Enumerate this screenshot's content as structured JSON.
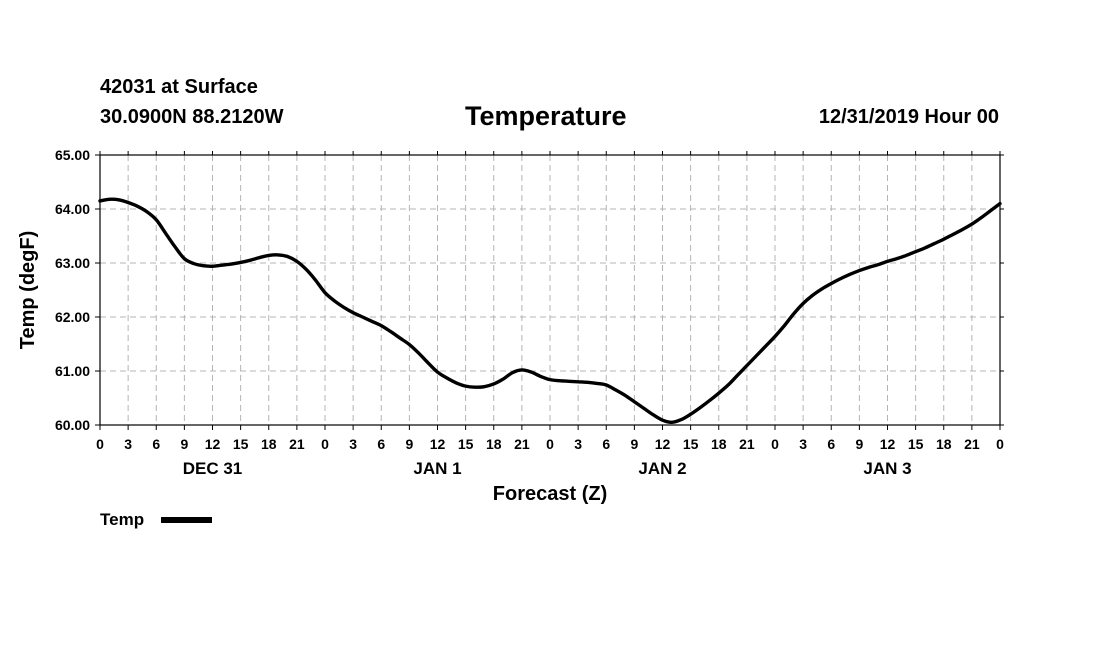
{
  "header": {
    "station": "42031 at Surface",
    "coordinates": "30.0900N 88.2120W",
    "title": "Temperature",
    "datetime": "12/31/2019 Hour 00"
  },
  "chart_data": {
    "type": "line",
    "title": "Temperature",
    "xlabel": "Forecast (Z)",
    "ylabel": "Temp (degF)",
    "ylim": [
      60.0,
      65.0
    ],
    "y_ticks": [
      "60.00",
      "61.00",
      "62.00",
      "63.00",
      "64.00",
      "65.00"
    ],
    "xlim": [
      0,
      96
    ],
    "x_tick_labels": [
      "0",
      "3",
      "6",
      "9",
      "12",
      "15",
      "18",
      "21",
      "0",
      "3",
      "6",
      "9",
      "12",
      "15",
      "18",
      "21",
      "0",
      "3",
      "6",
      "9",
      "12",
      "15",
      "18",
      "21",
      "0",
      "3",
      "6",
      "9",
      "12",
      "15",
      "18",
      "21",
      "0"
    ],
    "day_labels": [
      {
        "label": "DEC 31",
        "hour": 12
      },
      {
        "label": "JAN 1",
        "hour": 36
      },
      {
        "label": "JAN 2",
        "hour": 60
      },
      {
        "label": "JAN 3",
        "hour": 84
      }
    ],
    "grid": true,
    "legend": {
      "position": "bottom-left",
      "color": "#000000"
    },
    "series": [
      {
        "name": "Temp",
        "color": "#000000",
        "x": [
          0,
          1,
          2,
          3,
          4,
          5,
          6,
          7,
          8,
          9,
          10,
          11,
          12,
          13,
          14,
          15,
          16,
          17,
          18,
          19,
          20,
          21,
          22,
          23,
          24,
          25,
          26,
          27,
          28,
          29,
          30,
          31,
          32,
          33,
          34,
          35,
          36,
          37,
          38,
          39,
          40,
          41,
          42,
          43,
          44,
          45,
          46,
          47,
          48,
          49,
          50,
          51,
          52,
          53,
          54,
          55,
          56,
          57,
          58,
          59,
          60,
          61,
          62,
          63,
          64,
          65,
          66,
          67,
          68,
          69,
          70,
          71,
          72,
          73,
          74,
          75,
          76,
          77,
          78,
          79,
          80,
          81,
          82,
          83,
          84,
          85,
          86,
          87,
          88,
          89,
          90,
          91,
          92,
          93,
          94,
          95,
          96
        ],
        "values": [
          64.15,
          64.18,
          64.17,
          64.12,
          64.05,
          63.95,
          63.8,
          63.55,
          63.3,
          63.08,
          62.99,
          62.95,
          62.94,
          62.96,
          62.98,
          63.01,
          63.05,
          63.1,
          63.14,
          63.15,
          63.12,
          63.03,
          62.88,
          62.68,
          62.45,
          62.3,
          62.18,
          62.08,
          62.0,
          61.92,
          61.84,
          61.73,
          61.61,
          61.49,
          61.33,
          61.15,
          60.98,
          60.87,
          60.78,
          60.72,
          60.7,
          60.71,
          60.76,
          60.85,
          60.97,
          61.02,
          60.98,
          60.9,
          60.84,
          60.82,
          60.81,
          60.8,
          60.79,
          60.77,
          60.74,
          60.65,
          60.55,
          60.43,
          60.31,
          60.19,
          60.09,
          60.05,
          60.1,
          60.2,
          60.32,
          60.45,
          60.59,
          60.74,
          60.92,
          61.1,
          61.28,
          61.46,
          61.64,
          61.84,
          62.06,
          62.25,
          62.4,
          62.52,
          62.62,
          62.71,
          62.79,
          62.86,
          62.92,
          62.97,
          63.03,
          63.08,
          63.14,
          63.21,
          63.28,
          63.36,
          63.44,
          63.53,
          63.62,
          63.72,
          63.84,
          63.97,
          64.1
        ]
      }
    ]
  }
}
